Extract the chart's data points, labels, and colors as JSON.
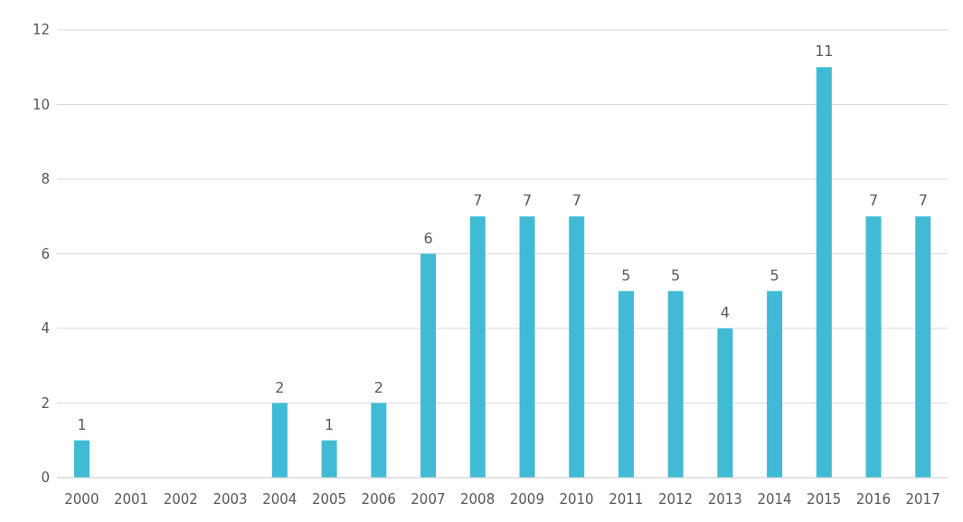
{
  "chart_data": {
    "type": "bar",
    "categories": [
      "2000",
      "2001",
      "2002",
      "2003",
      "2004",
      "2005",
      "2006",
      "2007",
      "2008",
      "2009",
      "2010",
      "2011",
      "2012",
      "2013",
      "2014",
      "2015",
      "2016",
      "2017"
    ],
    "values": [
      1,
      0,
      0,
      0,
      2,
      1,
      2,
      6,
      7,
      7,
      7,
      5,
      5,
      4,
      5,
      11,
      7,
      7
    ],
    "value_labels": [
      "1",
      null,
      null,
      null,
      "2",
      "1",
      "2",
      "6",
      "7",
      "7",
      "7",
      "5",
      "5",
      "4",
      "5",
      "11",
      "7",
      "7"
    ],
    "color": "#40bad5",
    "ylim": [
      0,
      12
    ],
    "yticks": [
      0,
      2,
      4,
      6,
      8,
      10,
      12
    ],
    "grid": "y"
  }
}
